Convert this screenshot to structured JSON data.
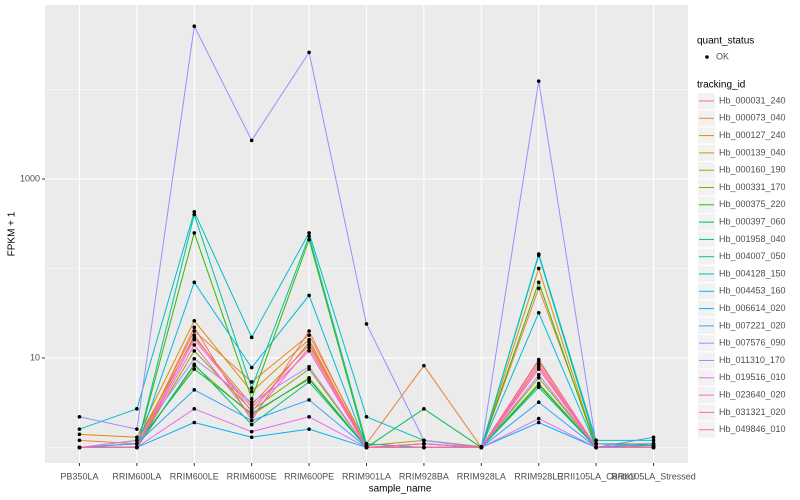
{
  "chart_data": {
    "type": "line",
    "x_label": "sample_name",
    "y_label": "FPKM + 1",
    "categories": [
      "PB350LA",
      "RRIM600LA",
      "RRIM600LE",
      "RRIM600SE",
      "RRIM600PE",
      "RRIM901LA",
      "RRIM928BA",
      "RRIM928LA",
      "RRIM928LE",
      "RRII105LA_Control",
      "RRII105LA_Stressed"
    ],
    "ylim": [
      0.67,
      88000
    ],
    "yticks": [
      10,
      1000
    ],
    "log_y": true,
    "grid": true,
    "legend": "right",
    "point_legend": {
      "title": "quant_status",
      "label": "OK",
      "color": "#000000"
    },
    "legend_title": "tracking_id",
    "series": [
      {
        "name": "Hb_000031_240",
        "color": "#F8766D",
        "values": [
          1,
          1,
          22,
          2.0,
          20,
          1,
          1,
          1,
          7.5,
          1,
          1
        ]
      },
      {
        "name": "Hb_000073_040",
        "color": "#EA8331",
        "values": [
          1.2,
          1.1,
          20,
          5.4,
          18,
          1.1,
          8.2,
          1,
          60,
          1.1,
          1.1
        ]
      },
      {
        "name": "Hb_000127_240",
        "color": "#D89000",
        "values": [
          1.4,
          1.3,
          26,
          4.2,
          16,
          1,
          1.1,
          1,
          100,
          1,
          1
        ]
      },
      {
        "name": "Hb_000139_040",
        "color": "#C09B00",
        "values": [
          1,
          1.2,
          17,
          3.0,
          14,
          1.05,
          1.2,
          1.02,
          9.2,
          1.02,
          1.05
        ]
      },
      {
        "name": "Hb_000160_190",
        "color": "#A3A500",
        "values": [
          1,
          1,
          8.2,
          2.3,
          6.0,
          1,
          1,
          1,
          5.2,
          1,
          1
        ]
      },
      {
        "name": "Hb_000331_170",
        "color": "#7CAE00",
        "values": [
          1,
          1,
          12,
          2.6,
          7.5,
          1,
          1,
          1,
          6,
          1,
          1
        ]
      },
      {
        "name": "Hb_000375_220",
        "color": "#39B600",
        "values": [
          1,
          1,
          250,
          3.5,
          210,
          1,
          1,
          1,
          70,
          1,
          1
        ]
      },
      {
        "name": "Hb_000397_060",
        "color": "#00BB4E",
        "values": [
          1,
          1.1,
          7.5,
          2.4,
          5.8,
          1,
          2.7,
          1,
          5,
          1,
          1
        ]
      },
      {
        "name": "Hb_001958_040",
        "color": "#00BF7D",
        "values": [
          1,
          1,
          8.5,
          1.8,
          5.4,
          1,
          1.1,
          1,
          4.7,
          1,
          1
        ]
      },
      {
        "name": "Hb_004007_050",
        "color": "#00C1A3",
        "values": [
          1,
          1,
          400,
          4.6,
          230,
          1.1,
          1,
          1,
          140,
          1.1,
          1.05
        ]
      },
      {
        "name": "Hb_004128_150",
        "color": "#00BFC4",
        "values": [
          1.6,
          2.7,
          430,
          17,
          250,
          2.2,
          1.2,
          1,
          145,
          1.2,
          1.2
        ]
      },
      {
        "name": "Hb_004453_160",
        "color": "#00BAE0",
        "values": [
          1,
          1,
          70,
          7.8,
          50,
          1,
          1,
          1,
          32,
          1,
          1
        ]
      },
      {
        "name": "Hb_006614_020",
        "color": "#00B0F6",
        "values": [
          1,
          1,
          1.9,
          1.3,
          1.6,
          1,
          1,
          1,
          1.9,
          1,
          1.1
        ]
      },
      {
        "name": "Hb_007221_020",
        "color": "#35A2FF",
        "values": [
          1,
          1.1,
          4.4,
          2.0,
          3.4,
          1,
          1,
          1,
          3.2,
          1,
          1.3
        ]
      },
      {
        "name": "Hb_007576_090",
        "color": "#9590FF",
        "values": [
          2.2,
          1.6,
          51000,
          2700,
          26000,
          24,
          1.2,
          1,
          12400,
          1.1,
          1
        ]
      },
      {
        "name": "Hb_011310_170",
        "color": "#C77CFF",
        "values": [
          1,
          1.2,
          9.8,
          3.2,
          8.0,
          1,
          1,
          1,
          6.5,
          1,
          1
        ]
      },
      {
        "name": "Hb_019516_010",
        "color": "#E76BF3",
        "values": [
          1,
          1,
          2.7,
          1.5,
          2.2,
          1,
          1,
          1,
          2.1,
          1,
          1
        ]
      },
      {
        "name": "Hb_023640_020",
        "color": "#FA62DB",
        "values": [
          1,
          1,
          16,
          2.8,
          12,
          1,
          1,
          1,
          8,
          1,
          1
        ]
      },
      {
        "name": "Hb_031321_020",
        "color": "#FF62BC",
        "values": [
          1,
          1,
          14,
          2.2,
          13,
          1,
          1.1,
          1,
          9.6,
          1,
          1
        ]
      },
      {
        "name": "Hb_049846_010",
        "color": "#FF6C91",
        "values": [
          1,
          1,
          18,
          2.5,
          15,
          1,
          1,
          1,
          8.5,
          1,
          1
        ]
      }
    ]
  }
}
